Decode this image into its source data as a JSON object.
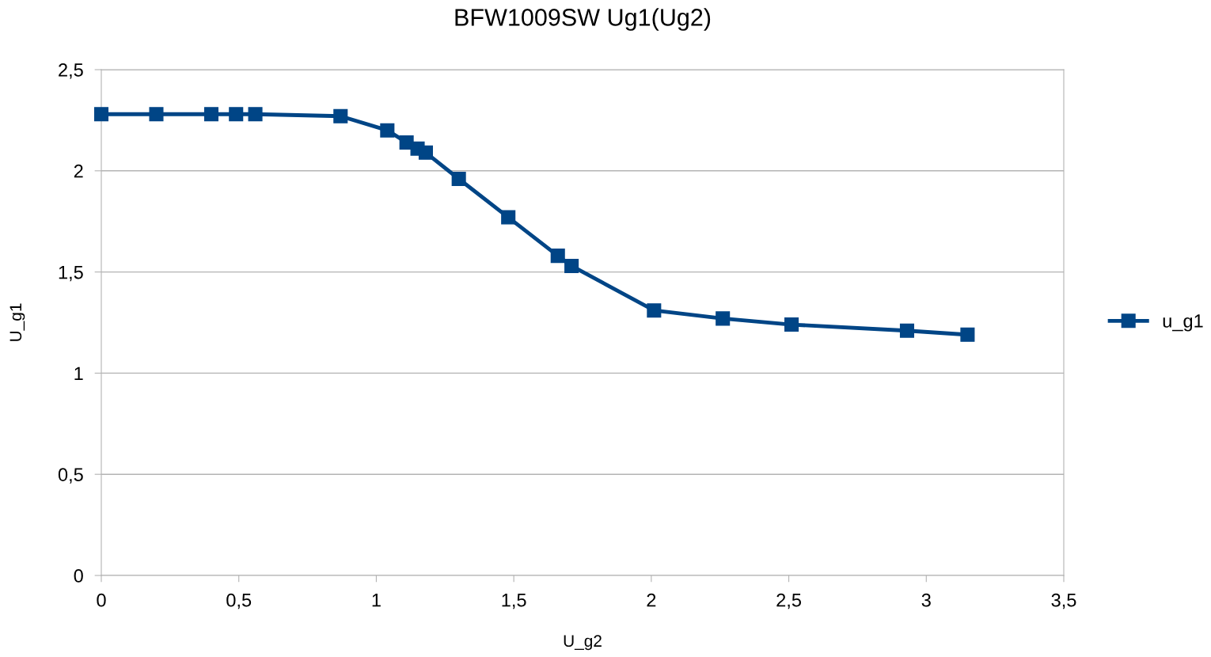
{
  "chart_data": {
    "type": "line",
    "title": "BFW1009SW Ug1(Ug2)",
    "xlabel": "U_g2",
    "ylabel": "U_g1",
    "x": [
      0,
      0.2,
      0.4,
      0.49,
      0.56,
      0.87,
      1.04,
      1.11,
      1.15,
      1.18,
      1.3,
      1.48,
      1.66,
      1.71,
      2.01,
      2.26,
      2.51,
      2.93,
      3.15
    ],
    "series": [
      {
        "name": "u_g1",
        "color": "#004586",
        "values": [
          2.28,
          2.28,
          2.28,
          2.28,
          2.28,
          2.27,
          2.2,
          2.14,
          2.11,
          2.09,
          1.96,
          1.77,
          1.58,
          1.53,
          1.31,
          1.27,
          1.24,
          1.21,
          1.19
        ]
      }
    ],
    "xlim": [
      0,
      3.5
    ],
    "ylim": [
      0,
      2.5
    ],
    "xticks": [
      0,
      {
        "value": 0.5,
        "label": "0,5"
      },
      1,
      {
        "value": 1.5,
        "label": "1,5"
      },
      2,
      {
        "value": 2.5,
        "label": "2,5"
      },
      3,
      {
        "value": 3.5,
        "label": "3,5"
      }
    ],
    "yticks": [
      0,
      {
        "value": 0.5,
        "label": "0,5"
      },
      1,
      {
        "value": 1.5,
        "label": "1,5"
      },
      2,
      {
        "value": 2.5,
        "label": "2,5"
      }
    ],
    "grid": "y",
    "legend": "right",
    "marker": "square",
    "line_style": "solid"
  }
}
